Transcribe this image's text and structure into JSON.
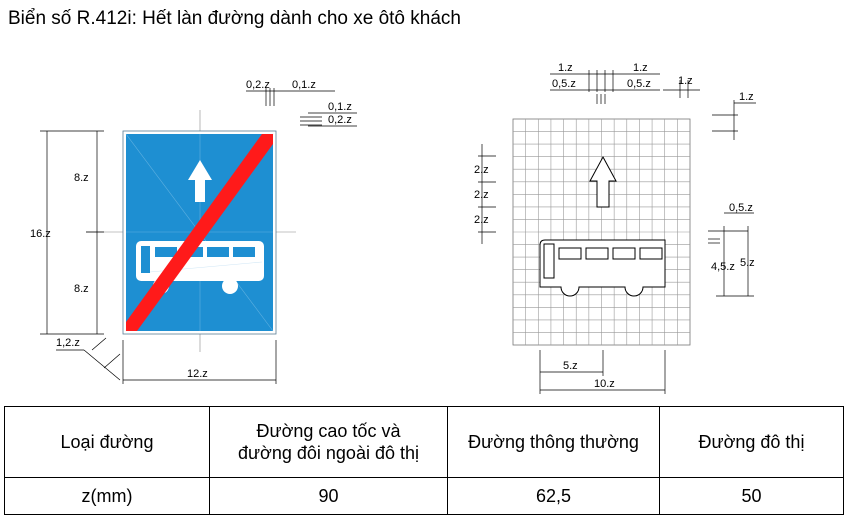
{
  "title": "Biển số R.412i: Hết làn đường dành cho xe ôtô khách",
  "sign": {
    "colors": {
      "background": "#1e8fd2",
      "border": "#ffffff",
      "strike": "#ff1a1a",
      "symbol": "#ffffff"
    },
    "dims": {
      "height_total": "16.z",
      "height_upper": "8.z",
      "height_lower": "8.z",
      "width": "12.z",
      "corner": "1,2.z",
      "top_a": "0,2.z",
      "top_b": "0,1.z",
      "side_a": "0,1.z",
      "side_b": "0,2.z"
    }
  },
  "grid": {
    "dims": {
      "top_left_1": "1.z",
      "top_right_1": "1.z",
      "top_left_05": "0,5.z",
      "top_right_05": "0,5.z",
      "top_far_1": "1.z",
      "right_1": "1.z",
      "left_2a": "2.z",
      "left_2b": "2.z",
      "left_2c": "2.z",
      "right_05": "0,5.z",
      "right_45": "4,5.z",
      "right_5": "5.z",
      "bottom_5": "5.z",
      "bottom_10": "10.z"
    }
  },
  "table": {
    "headers": [
      "Loại đường",
      "Đường cao tốc và đường đôi ngoài đô thị",
      "Đường thông thường",
      "Đường đô thị"
    ],
    "header_line2": "đường đôi ngoài đô thị",
    "header_line1": "Đường cao tốc và",
    "row_label": "z(mm)",
    "values": [
      "90",
      "62,5",
      "50"
    ]
  }
}
